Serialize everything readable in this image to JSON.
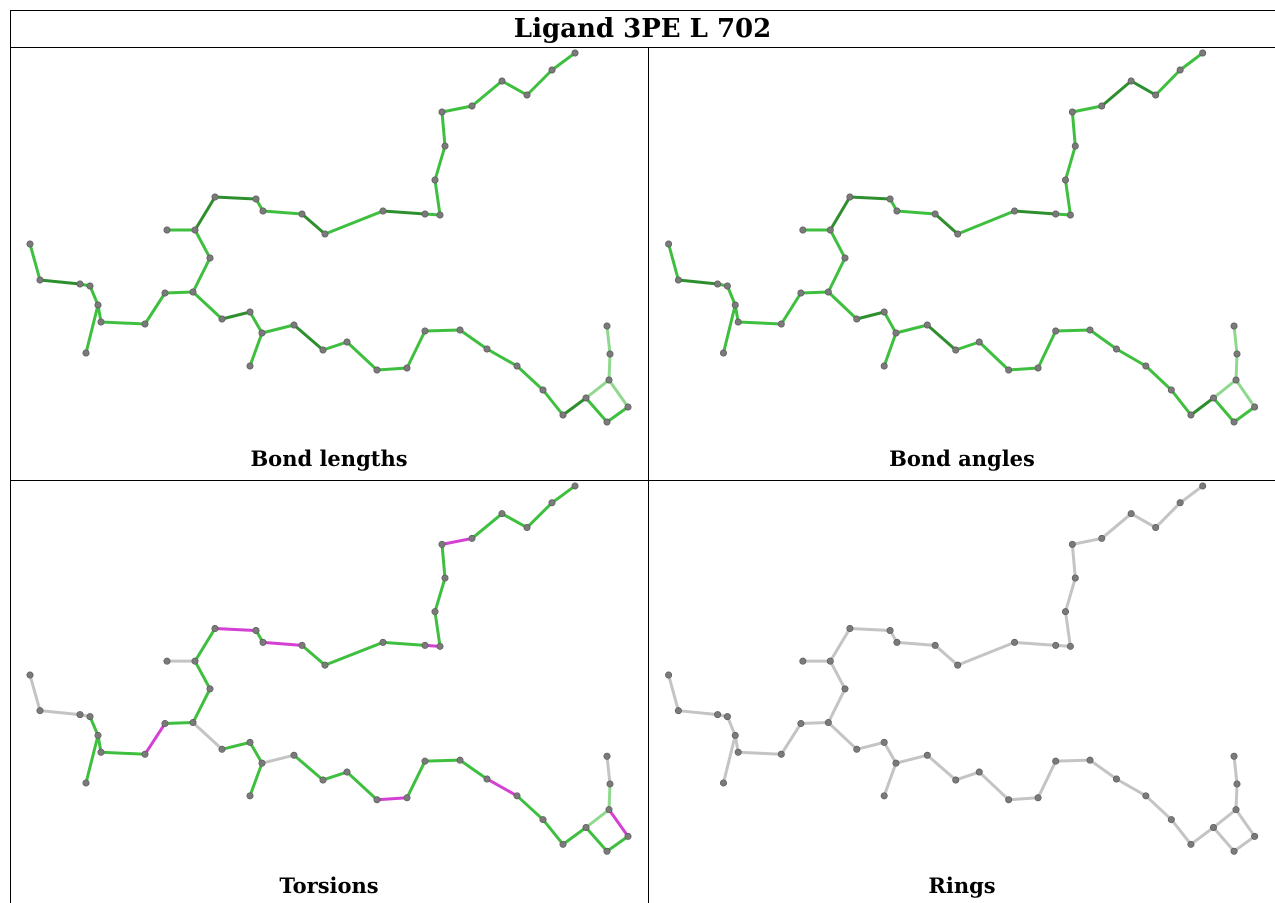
{
  "title": "Ligand 3PE L 702",
  "panels": [
    {
      "caption": "Bond lengths"
    },
    {
      "caption": "Bond angles"
    },
    {
      "caption": "Torsions"
    },
    {
      "caption": "Rings"
    }
  ],
  "colors": {
    "ok_bond": "#3fbf3f",
    "dark_bond": "#2e8f2e",
    "light_bond": "#8fd98f",
    "outlier_bond": "#d43fd4",
    "neutral_bond": "#c4c4c4",
    "atom": "#7a7a7a"
  }
}
